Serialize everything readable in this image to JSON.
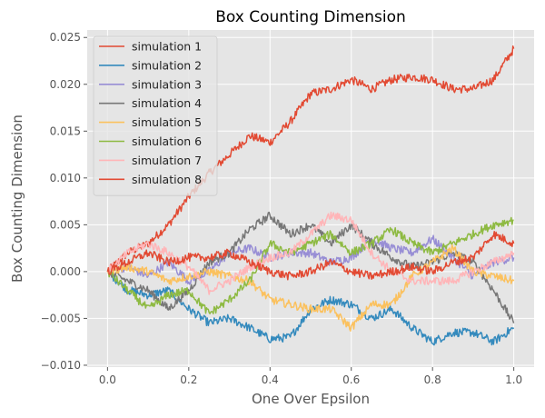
{
  "chart_data": {
    "type": "line",
    "title": "Box Counting Dimension",
    "xlabel": "One Over Epsilon",
    "ylabel": "Box Counting Dimension",
    "xlim": [
      -0.05,
      1.05
    ],
    "ylim": [
      -0.0102,
      0.0258
    ],
    "xticks": [
      0.0,
      0.2,
      0.4,
      0.6,
      0.8,
      1.0
    ],
    "xtick_labels": [
      "0.0",
      "0.2",
      "0.4",
      "0.6",
      "0.8",
      "1.0"
    ],
    "yticks": [
      -0.01,
      -0.005,
      0.0,
      0.005,
      0.01,
      0.015,
      0.02,
      0.025
    ],
    "ytick_labels": [
      "−0.010",
      "−0.005",
      "0.000",
      "0.005",
      "0.010",
      "0.015",
      "0.020",
      "0.025"
    ],
    "grid": true,
    "legend_position": "top-left",
    "series": [
      {
        "name": "simulation 1",
        "color": "#E24A33",
        "x": [
          0,
          0.05,
          0.1,
          0.15,
          0.2,
          0.25,
          0.3,
          0.35,
          0.4,
          0.45,
          0.5,
          0.55,
          0.6,
          0.65,
          0.7,
          0.75,
          0.8,
          0.85,
          0.9,
          0.95,
          1.0
        ],
        "y": [
          0,
          0.002,
          0.003,
          0.005,
          0.008,
          0.0105,
          0.0125,
          0.0145,
          0.0138,
          0.016,
          0.019,
          0.0195,
          0.0205,
          0.0195,
          0.0205,
          0.0208,
          0.0205,
          0.0195,
          0.0195,
          0.0205,
          0.0238
        ]
      },
      {
        "name": "simulation 2",
        "color": "#348ABD",
        "x": [
          0,
          0.05,
          0.1,
          0.15,
          0.2,
          0.25,
          0.3,
          0.35,
          0.4,
          0.45,
          0.5,
          0.55,
          0.6,
          0.65,
          0.7,
          0.75,
          0.8,
          0.85,
          0.9,
          0.95,
          1.0
        ],
        "y": [
          0,
          -0.002,
          -0.0025,
          -0.002,
          -0.004,
          -0.0055,
          -0.005,
          -0.006,
          -0.0072,
          -0.007,
          -0.004,
          -0.003,
          -0.0035,
          -0.005,
          -0.004,
          -0.006,
          -0.0075,
          -0.0065,
          -0.0065,
          -0.0075,
          -0.006
        ]
      },
      {
        "name": "simulation 3",
        "color": "#988ED5",
        "x": [
          0,
          0.05,
          0.1,
          0.15,
          0.2,
          0.25,
          0.3,
          0.35,
          0.4,
          0.45,
          0.5,
          0.55,
          0.6,
          0.65,
          0.7,
          0.75,
          0.8,
          0.85,
          0.9,
          0.95,
          1.0
        ],
        "y": [
          0,
          0.0005,
          -0.0005,
          0.001,
          -0.001,
          0,
          0.002,
          0.0025,
          0.0015,
          0.002,
          0.002,
          0.001,
          0.0015,
          0.0035,
          0.0025,
          0.002,
          0.0035,
          0.0015,
          -0.0005,
          0.001,
          0.0015
        ]
      },
      {
        "name": "simulation 4",
        "color": "#777777",
        "x": [
          0,
          0.05,
          0.1,
          0.15,
          0.2,
          0.25,
          0.3,
          0.35,
          0.4,
          0.45,
          0.5,
          0.55,
          0.6,
          0.65,
          0.7,
          0.75,
          0.8,
          0.85,
          0.9,
          0.95,
          1.0
        ],
        "y": [
          0,
          -0.001,
          -0.002,
          -0.004,
          -0.002,
          0.001,
          0.002,
          0.0045,
          0.006,
          0.004,
          0.005,
          0.003,
          0.005,
          0.003,
          0.0015,
          0.0005,
          0.001,
          0.002,
          0.001,
          -0.002,
          -0.0055
        ]
      },
      {
        "name": "simulation 5",
        "color": "#FBC15E",
        "x": [
          0,
          0.05,
          0.1,
          0.15,
          0.2,
          0.25,
          0.3,
          0.35,
          0.4,
          0.45,
          0.5,
          0.55,
          0.6,
          0.65,
          0.7,
          0.75,
          0.8,
          0.85,
          0.9,
          0.95,
          1.0
        ],
        "y": [
          0,
          0.0005,
          0,
          -0.001,
          -0.0005,
          0,
          -0.0005,
          -0.001,
          -0.003,
          -0.0035,
          -0.004,
          -0.004,
          -0.006,
          -0.0035,
          -0.0035,
          -0.0005,
          0.001,
          0.0025,
          0,
          -0.0005,
          -0.001
        ]
      },
      {
        "name": "simulation 6",
        "color": "#8EBA42",
        "x": [
          0,
          0.05,
          0.1,
          0.15,
          0.2,
          0.25,
          0.3,
          0.35,
          0.4,
          0.45,
          0.5,
          0.55,
          0.6,
          0.65,
          0.7,
          0.75,
          0.8,
          0.85,
          0.9,
          0.95,
          1.0
        ],
        "y": [
          0,
          -0.002,
          -0.004,
          -0.0025,
          -0.002,
          -0.0045,
          -0.003,
          -0.001,
          0.003,
          0.002,
          0.003,
          0.004,
          0.002,
          0.003,
          0.0045,
          0.003,
          0.002,
          0.003,
          0.004,
          0.005,
          0.0055
        ]
      },
      {
        "name": "simulation 7",
        "color": "#FFB5B8",
        "x": [
          0,
          0.05,
          0.1,
          0.15,
          0.2,
          0.25,
          0.3,
          0.35,
          0.4,
          0.45,
          0.5,
          0.55,
          0.6,
          0.65,
          0.7,
          0.75,
          0.8,
          0.85,
          0.9,
          0.95,
          1.0
        ],
        "y": [
          0,
          0.002,
          0.003,
          0.002,
          0.0005,
          -0.002,
          -0.001,
          0.0005,
          0.0015,
          0.002,
          0.004,
          0.006,
          0.0055,
          0.002,
          0,
          -0.001,
          -0.001,
          -0.001,
          0,
          0.001,
          0.002
        ]
      },
      {
        "name": "simulation 8",
        "color": "#E24A33",
        "x": [
          0,
          0.05,
          0.1,
          0.15,
          0.2,
          0.25,
          0.3,
          0.35,
          0.4,
          0.45,
          0.5,
          0.55,
          0.6,
          0.65,
          0.7,
          0.75,
          0.8,
          0.85,
          0.9,
          0.95,
          1.0
        ],
        "y": [
          0,
          0.001,
          0.002,
          0.001,
          0.0015,
          0.0015,
          0.002,
          0.001,
          0,
          -0.0005,
          0,
          0.001,
          0,
          -0.0005,
          0,
          0.0005,
          0,
          0.001,
          0.0015,
          0.004,
          0.003
        ]
      }
    ]
  }
}
